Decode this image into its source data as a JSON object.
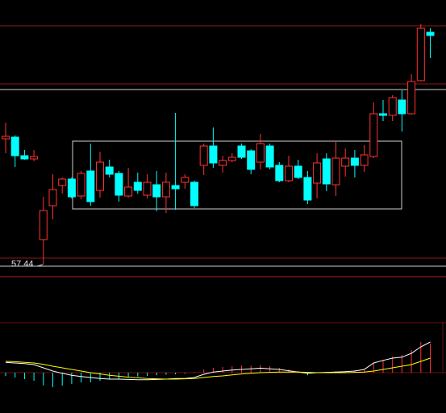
{
  "chart_data": [
    {
      "type": "candlestick",
      "up_color": "#ff3232",
      "down_color": "#00ffff",
      "open": [
        65.24,
        65.34,
        64.19,
        63.99,
        58.99,
        61.09,
        62.34,
        62.74,
        61.69,
        63.24,
        62.04,
        63.49,
        63.09,
        61.69,
        62.54,
        61.74,
        62.39,
        61.64,
        62.34,
        62.54,
        62.54,
        63.59,
        64.79,
        63.59,
        63.89,
        64.79,
        64.49,
        63.79,
        64.79,
        63.59,
        62.64,
        63.54,
        62.84,
        62.49,
        63.99,
        62.39,
        63.54,
        64.04,
        63.59,
        64.14,
        66.79,
        66.69,
        67.64,
        66.79,
        68.84,
        71.84
      ],
      "high": [
        66.24,
        65.44,
        64.54,
        64.54,
        61.64,
        63.04,
        62.84,
        62.84,
        63.24,
        64.94,
        64.44,
        63.94,
        63.24,
        63.44,
        63.14,
        63.04,
        63.24,
        63.14,
        66.84,
        63.04,
        62.64,
        64.94,
        65.94,
        64.19,
        64.34,
        64.94,
        64.59,
        65.54,
        64.94,
        63.79,
        64.19,
        63.94,
        63.24,
        64.34,
        64.34,
        65.04,
        64.64,
        64.54,
        64.84,
        67.49,
        67.64,
        67.94,
        68.24,
        69.24,
        72.34,
        72.09
      ],
      "low": [
        64.34,
        63.49,
        63.94,
        63.84,
        57.44,
        60.24,
        61.84,
        61.54,
        61.49,
        61.09,
        61.59,
        62.84,
        61.34,
        61.59,
        61.84,
        61.54,
        60.74,
        60.64,
        60.84,
        62.14,
        60.94,
        62.99,
        63.44,
        63.14,
        63.79,
        63.99,
        63.04,
        63.34,
        63.34,
        62.54,
        62.54,
        62.74,
        61.19,
        61.54,
        61.99,
        61.69,
        62.89,
        62.84,
        63.19,
        64.04,
        66.34,
        66.34,
        65.69,
        66.74,
        68.79,
        70.24
      ],
      "close": [
        65.39,
        64.19,
        63.99,
        64.14,
        60.79,
        62.09,
        62.74,
        61.64,
        63.09,
        61.34,
        63.79,
        63.04,
        61.74,
        62.24,
        62.04,
        62.54,
        61.64,
        62.54,
        62.14,
        62.84,
        61.09,
        64.79,
        63.74,
        63.89,
        64.09,
        64.09,
        63.34,
        64.94,
        63.49,
        62.64,
        63.54,
        62.84,
        61.44,
        63.74,
        62.44,
        64.04,
        64.04,
        63.59,
        64.24,
        66.79,
        66.69,
        67.79,
        66.79,
        68.79,
        72.09,
        71.64
      ],
      "ylim": [
        56.84,
        73.84
      ],
      "low_label": 57.44
    },
    {
      "type": "macd",
      "up_color": "#ff3232",
      "down_color": "#00ffff",
      "histogram": [
        -0.1,
        -0.15,
        -0.2,
        -0.25,
        -0.4,
        -0.45,
        -0.4,
        -0.35,
        -0.3,
        -0.3,
        -0.25,
        -0.2,
        -0.2,
        -0.15,
        -0.12,
        -0.1,
        -0.08,
        -0.06,
        -0.05,
        -0.03,
        0.02,
        0.1,
        0.15,
        0.18,
        0.2,
        0.22,
        0.22,
        0.24,
        0.2,
        0.15,
        0.1,
        0.05,
        -0.08,
        0.02,
        0.03,
        0.05,
        0.06,
        0.08,
        0.12,
        0.3,
        0.4,
        0.5,
        0.55,
        0.7,
        0.95,
        0.9
      ],
      "series": [
        {
          "color": "#ffffff",
          "values": [
            0.32,
            0.3,
            0.28,
            0.25,
            0.15,
            0.05,
            -0.02,
            -0.08,
            -0.12,
            -0.15,
            -0.18,
            -0.2,
            -0.2,
            -0.21,
            -0.22,
            -0.22,
            -0.21,
            -0.2,
            -0.18,
            -0.18,
            -0.15,
            -0.05,
            0.02,
            0.05,
            0.08,
            0.1,
            0.12,
            0.14,
            0.12,
            0.1,
            0.06,
            0.02,
            -0.02,
            0,
            0.01,
            0.02,
            0.03,
            0.05,
            0.1,
            0.3,
            0.38,
            0.45,
            0.48,
            0.6,
            0.8,
            0.95
          ]
        },
        {
          "color": "#ffff00",
          "values": [
            0.35,
            0.34,
            0.32,
            0.3,
            0.26,
            0.2,
            0.15,
            0.1,
            0.05,
            0,
            -0.04,
            -0.08,
            -0.11,
            -0.14,
            -0.16,
            -0.18,
            -0.19,
            -0.2,
            -0.2,
            -0.19,
            -0.18,
            -0.15,
            -0.12,
            -0.1,
            -0.07,
            -0.04,
            -0.02,
            0,
            0.01,
            0.02,
            0.02,
            0.02,
            0.01,
            0,
            0,
            0,
            0,
            0.01,
            0.02,
            0.05,
            0.1,
            0.15,
            0.2,
            0.25,
            0.35,
            0.45
          ]
        }
      ],
      "ylim": [
        -1.25,
        1.55
      ]
    }
  ]
}
